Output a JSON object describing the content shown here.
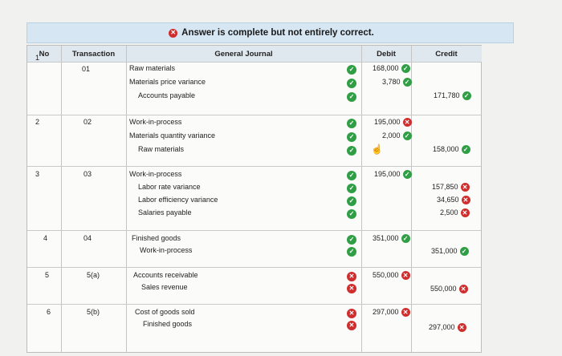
{
  "banner": {
    "message": "Answer is complete but not entirely correct."
  },
  "headers": {
    "no": "No",
    "transaction": "Transaction",
    "journal": "General Journal",
    "debit": "Debit",
    "credit": "Credit"
  },
  "entries": [
    {
      "no": "1",
      "txn": "01",
      "lines": [
        {
          "account": "Raw materials",
          "debit": "168,000",
          "credit": ""
        },
        {
          "account": "Materials price variance",
          "debit": "3,780",
          "credit": ""
        },
        {
          "account": "Accounts payable",
          "debit": "",
          "credit": "171,780"
        }
      ]
    },
    {
      "no": "2",
      "txn": "02",
      "lines": [
        {
          "account": "Work-in-process",
          "debit": "195,000",
          "credit": ""
        },
        {
          "account": "Materials quantity variance",
          "debit": "2,000",
          "credit": ""
        },
        {
          "account": "Raw materials",
          "debit": "",
          "credit": "158,000"
        }
      ]
    },
    {
      "no": "3",
      "txn": "03",
      "lines": [
        {
          "account": "Work-in-process",
          "debit": "195,000",
          "credit": ""
        },
        {
          "account": "Labor rate variance",
          "debit": "",
          "credit": "157,850"
        },
        {
          "account": "Labor efficiency variance",
          "debit": "",
          "credit": "34,650"
        },
        {
          "account": "Salaries payable",
          "debit": "",
          "credit": "2,500"
        }
      ]
    },
    {
      "no": "4",
      "txn": "04",
      "lines": [
        {
          "account": "Finished goods",
          "debit": "351,000",
          "credit": ""
        },
        {
          "account": "Work-in-process",
          "debit": "",
          "credit": "351,000"
        }
      ]
    },
    {
      "no": "5",
      "txn": "5(a)",
      "lines": [
        {
          "account": "Accounts receivable",
          "debit": "550,000",
          "credit": ""
        },
        {
          "account": "Sales revenue",
          "debit": "",
          "credit": "550,000"
        }
      ]
    },
    {
      "no": "6",
      "txn": "5(b)",
      "lines": [
        {
          "account": "Cost of goods sold",
          "debit": "297,000",
          "credit": ""
        },
        {
          "account": "Finished goods",
          "debit": "",
          "credit": "297,000"
        }
      ]
    }
  ],
  "colors": {
    "correct": "#2f9e44",
    "incorrect": "#cf2e2e"
  }
}
